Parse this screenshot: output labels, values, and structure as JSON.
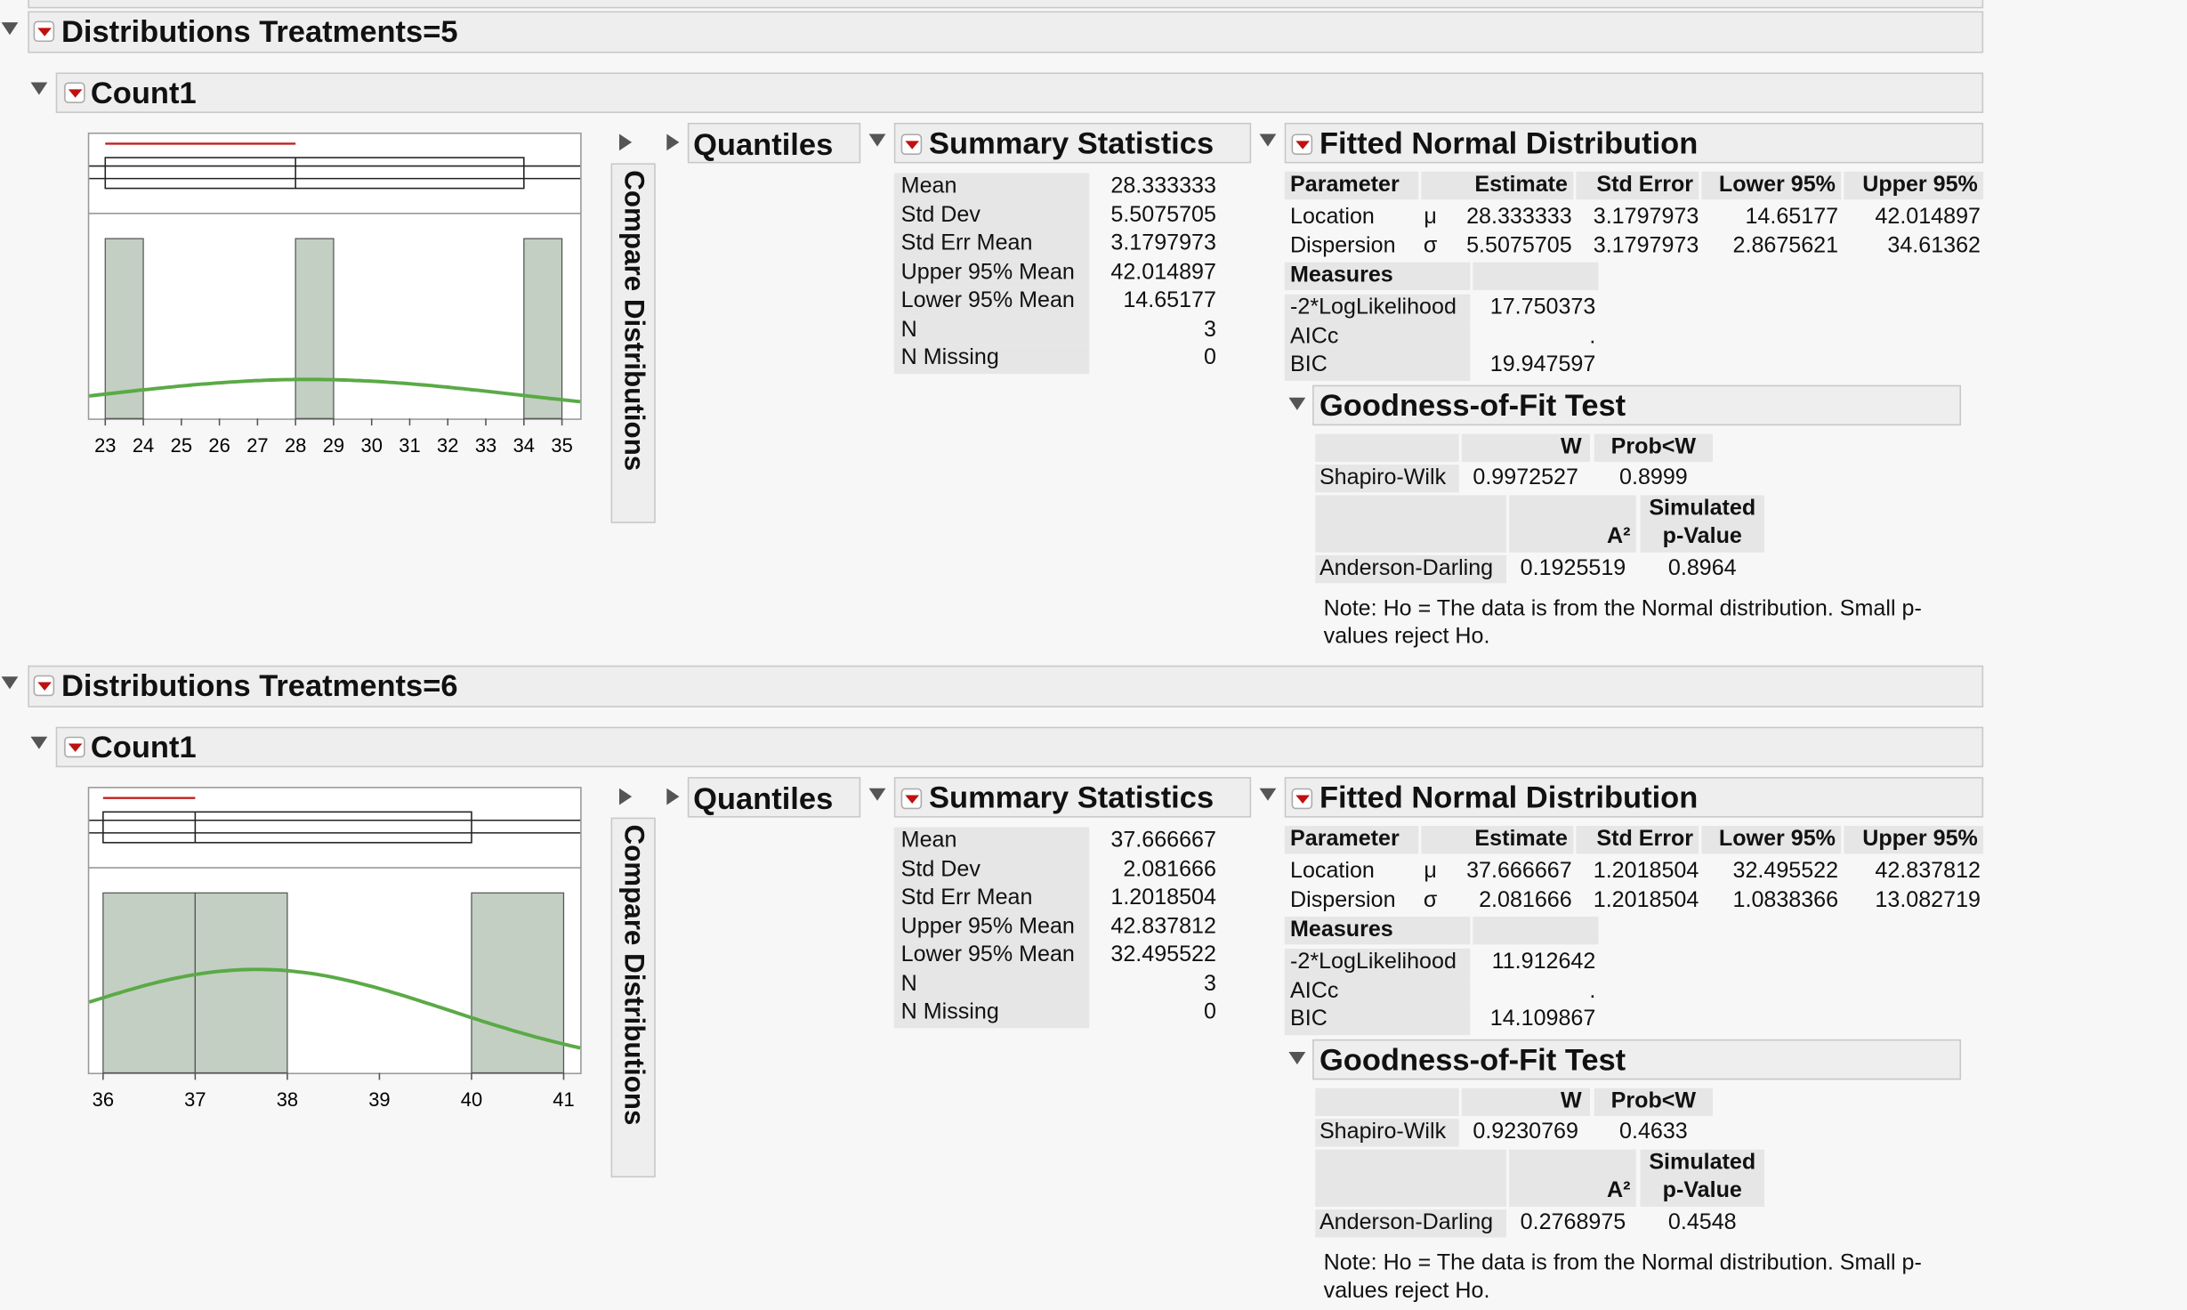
{
  "reports": [
    {
      "title": "Distributions Treatments=5",
      "variable": "Count1",
      "compare_label": "Compare Distributions",
      "quantiles_title": "Quantiles",
      "histogram": {
        "type": "histogram",
        "bins": [
          23,
          24,
          25,
          26,
          27,
          28,
          29,
          30,
          31,
          32,
          33,
          34,
          35
        ],
        "counts": [
          1,
          0,
          0,
          0,
          0,
          1,
          0,
          0,
          0,
          0,
          0,
          1
        ],
        "color": "#c3cfc3",
        "xlim": [
          22.58,
          35.48
        ],
        "ylim": [
          0,
          1.14
        ],
        "xticks": [
          23,
          24,
          25,
          26,
          27,
          28,
          29,
          30,
          31,
          32,
          33,
          34,
          35
        ],
        "box": {
          "min": 23,
          "q1": 23,
          "median": 28,
          "q3": 34,
          "max": 34
        },
        "shortest_half": [
          23,
          28
        ],
        "curve_color": "#5aaa46"
      },
      "summary": {
        "title": "Summary Statistics",
        "rows": [
          [
            "Mean",
            "28.333333"
          ],
          [
            "Std Dev",
            "5.5075705"
          ],
          [
            "Std Err Mean",
            "3.1797973"
          ],
          [
            "Upper 95% Mean",
            "42.014897"
          ],
          [
            "Lower 95% Mean",
            "14.65177"
          ],
          [
            "N",
            "3"
          ],
          [
            "N Missing",
            "0"
          ]
        ]
      },
      "fitted": {
        "title": "Fitted Normal Distribution",
        "header": [
          "Parameter",
          "Estimate",
          "Std Error",
          "Lower 95%",
          "Upper 95%"
        ],
        "rows": [
          [
            "Location",
            "μ",
            "28.333333",
            "3.1797973",
            "14.65177",
            "42.014897"
          ],
          [
            "Dispersion",
            "σ",
            "5.5075705",
            "3.1797973",
            "2.8675621",
            "34.61362"
          ]
        ],
        "measures_title": "Measures",
        "measures": [
          [
            "-2*LogLikelihood",
            "17.750373"
          ],
          [
            "AICc",
            "."
          ],
          [
            "BIC",
            "19.947597"
          ]
        ]
      },
      "gof": {
        "title": "Goodness-of-Fit Test",
        "sw_header": [
          "W",
          "Prob<W"
        ],
        "sw_row": [
          "Shapiro-Wilk",
          "0.9972527",
          "0.8999"
        ],
        "ad_header": [
          "A²",
          "Simulated p-Value"
        ],
        "ad_row": [
          "Anderson-Darling",
          "0.1925519",
          "0.8964"
        ],
        "note": "Note: Ho = The data is from the Normal distribution. Small p-values reject Ho."
      }
    },
    {
      "title": "Distributions Treatments=6",
      "variable": "Count1",
      "compare_label": "Compare Distributions",
      "quantiles_title": "Quantiles",
      "histogram": {
        "type": "histogram",
        "bins": [
          36,
          37,
          38,
          39,
          40,
          41
        ],
        "counts": [
          1,
          1,
          0,
          0,
          1
        ],
        "color": "#c3cfc3",
        "xlim": [
          35.85,
          41.18
        ],
        "ylim": [
          0,
          1.14
        ],
        "xticks": [
          36,
          37,
          38,
          39,
          40,
          41
        ],
        "box": {
          "min": 36,
          "q1": 36,
          "median": 37,
          "q3": 40,
          "max": 40
        },
        "shortest_half": [
          36,
          37
        ],
        "curve_color": "#5aaa46"
      },
      "summary": {
        "title": "Summary Statistics",
        "rows": [
          [
            "Mean",
            "37.666667"
          ],
          [
            "Std Dev",
            "2.081666"
          ],
          [
            "Std Err Mean",
            "1.2018504"
          ],
          [
            "Upper 95% Mean",
            "42.837812"
          ],
          [
            "Lower 95% Mean",
            "32.495522"
          ],
          [
            "N",
            "3"
          ],
          [
            "N Missing",
            "0"
          ]
        ]
      },
      "fitted": {
        "title": "Fitted Normal Distribution",
        "header": [
          "Parameter",
          "Estimate",
          "Std Error",
          "Lower 95%",
          "Upper 95%"
        ],
        "rows": [
          [
            "Location",
            "μ",
            "37.666667",
            "1.2018504",
            "32.495522",
            "42.837812"
          ],
          [
            "Dispersion",
            "σ",
            "2.081666",
            "1.2018504",
            "1.0838366",
            "13.082719"
          ]
        ],
        "measures_title": "Measures",
        "measures": [
          [
            "-2*LogLikelihood",
            "11.912642"
          ],
          [
            "AICc",
            "."
          ],
          [
            "BIC",
            "14.109867"
          ]
        ]
      },
      "gof": {
        "title": "Goodness-of-Fit Test",
        "sw_header": [
          "W",
          "Prob<W"
        ],
        "sw_row": [
          "Shapiro-Wilk",
          "0.9230769",
          "0.4633"
        ],
        "ad_header": [
          "A²",
          "Simulated p-Value"
        ],
        "ad_row": [
          "Anderson-Darling",
          "0.2768975",
          "0.4548"
        ],
        "note": "Note: Ho = The data is from the Normal distribution. Small p-values reject Ho."
      }
    }
  ]
}
